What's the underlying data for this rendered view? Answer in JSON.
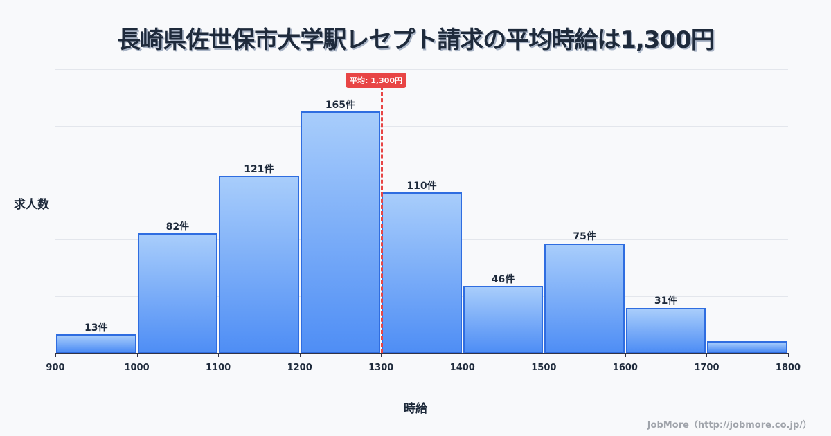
{
  "title": "長崎県佐世保市大学駅レセプト請求の平均時給は1,300円",
  "y_axis_label": "求人数",
  "x_axis_label": "時給",
  "average_badge": "平均: 1,300円",
  "credit": "JobMore（http://jobmore.co.jp/）",
  "colors": {
    "bar_fill_top": "#a8cdfb",
    "bar_fill_bottom": "#4f8ef5",
    "bar_border": "#2f6de0",
    "average_line": "#e84545",
    "text": "#1e2a3b"
  },
  "chart_data": {
    "type": "bar",
    "title": "長崎県佐世保市大学駅レセプト請求の平均時給は1,300円",
    "xlabel": "時給",
    "ylabel": "求人数",
    "bins": [
      [
        900,
        1000
      ],
      [
        1000,
        1100
      ],
      [
        1100,
        1200
      ],
      [
        1200,
        1300
      ],
      [
        1300,
        1400
      ],
      [
        1400,
        1500
      ],
      [
        1500,
        1600
      ],
      [
        1600,
        1700
      ],
      [
        1700,
        1800
      ]
    ],
    "categories": [
      "900-1000",
      "1000-1100",
      "1100-1200",
      "1200-1300",
      "1300-1400",
      "1400-1500",
      "1500-1600",
      "1600-1700",
      "1700-1800"
    ],
    "values": [
      13,
      82,
      121,
      165,
      110,
      46,
      75,
      31,
      8
    ],
    "value_labels": [
      "13件",
      "82件",
      "121件",
      "165件",
      "110件",
      "46件",
      "75件",
      "31件",
      ""
    ],
    "x_ticks": [
      "900",
      "1000",
      "1100",
      "1200",
      "1300",
      "1400",
      "1500",
      "1600",
      "1700",
      "1800"
    ],
    "xlim": [
      900,
      1800
    ],
    "ylim": [
      0,
      194
    ],
    "grid": true,
    "annotations": [
      {
        "type": "vline",
        "x": 1300,
        "label": "平均: 1,300円",
        "style": "dashed",
        "color": "#e84545"
      }
    ]
  }
}
